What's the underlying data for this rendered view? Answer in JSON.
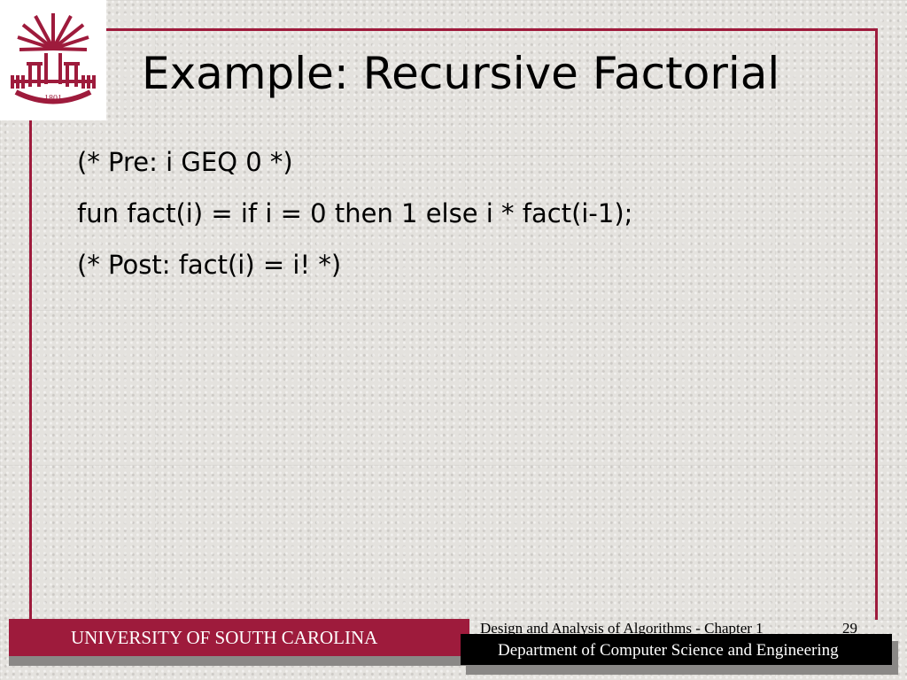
{
  "slide": {
    "title": "Example: Recursive Factorial",
    "lines": [
      "(* Pre: i GEQ 0 *)",
      "fun fact(i) = if i = 0 then 1 else i * fact(i-1);",
      "(* Post: fact(i) = i! *)"
    ]
  },
  "logo": {
    "year": "1801",
    "icon": "usc-palmetto-logo"
  },
  "footer": {
    "university": "UNIVERSITY OF SOUTH CAROLINA",
    "course": "Design and Analysis of Algorithms - Chapter 1",
    "page_number": "29",
    "department": "Department of Computer Science and Engineering"
  },
  "colors": {
    "accent": "#9e1b3c"
  }
}
